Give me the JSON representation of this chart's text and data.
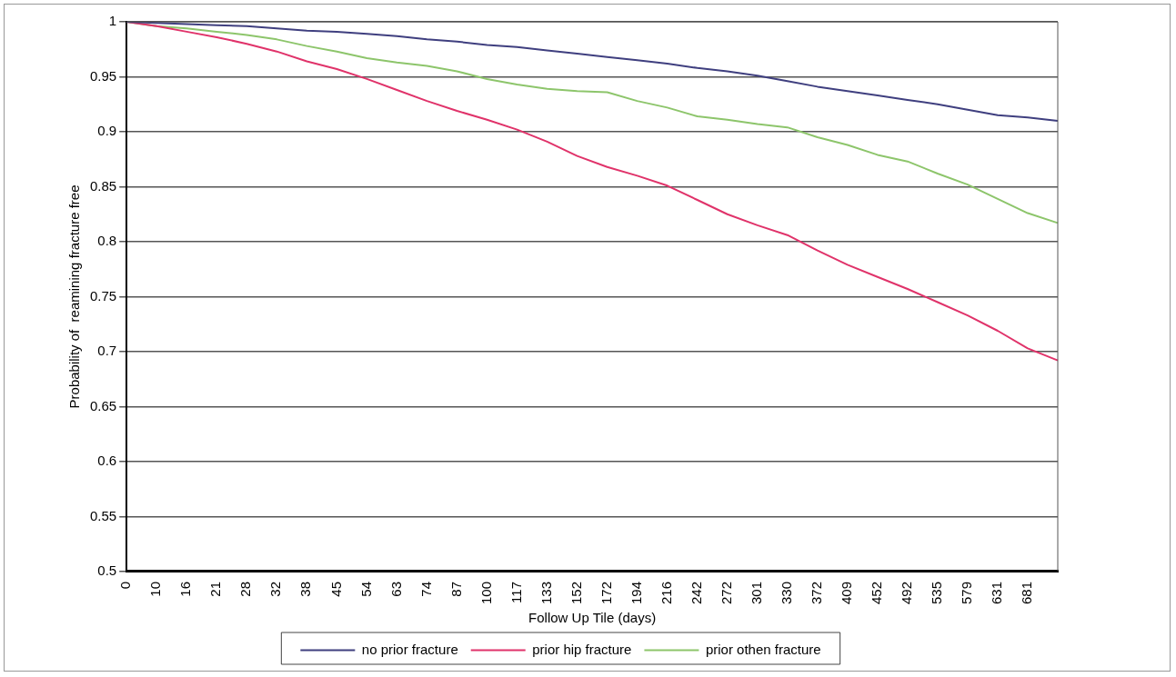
{
  "chart_data": {
    "type": "line",
    "xlabel": "Follow Up Tile (days)",
    "ylabel": "Probability of  reamining fracture free",
    "categories": [
      "0",
      "10",
      "16",
      "21",
      "28",
      "32",
      "38",
      "45",
      "54",
      "63",
      "74",
      "87",
      "100",
      "117",
      "133",
      "152",
      "172",
      "194",
      "216",
      "242",
      "272",
      "301",
      "330",
      "372",
      "409",
      "452",
      "492",
      "535",
      "579",
      "631",
      "681",
      null
    ],
    "series": [
      {
        "name": "no prior fracture",
        "color": "#3f3f7f",
        "values": [
          1.0,
          0.999,
          0.998,
          0.997,
          0.996,
          0.994,
          0.992,
          0.991,
          0.989,
          0.987,
          0.984,
          0.982,
          0.979,
          0.977,
          0.974,
          0.971,
          0.968,
          0.965,
          0.962,
          0.958,
          0.955,
          0.951,
          0.946,
          0.941,
          0.937,
          0.933,
          0.929,
          0.925,
          0.92,
          0.915,
          0.913,
          0.91
        ]
      },
      {
        "name": "prior hip fracture",
        "color": "#e0336a",
        "values": [
          1.0,
          0.996,
          0.991,
          0.986,
          0.98,
          0.973,
          0.964,
          0.957,
          0.948,
          0.938,
          0.928,
          0.919,
          0.911,
          0.902,
          0.891,
          0.878,
          0.868,
          0.86,
          0.851,
          0.838,
          0.825,
          0.815,
          0.806,
          0.792,
          0.779,
          0.768,
          0.757,
          0.745,
          0.733,
          0.719,
          0.703,
          0.692
        ]
      },
      {
        "name": "prior othen fracture",
        "color": "#8dc56b",
        "values": [
          1.0,
          0.996,
          0.994,
          0.991,
          0.988,
          0.984,
          0.978,
          0.973,
          0.967,
          0.963,
          0.96,
          0.955,
          0.948,
          0.943,
          0.939,
          0.937,
          0.936,
          0.928,
          0.922,
          0.914,
          0.911,
          0.907,
          0.904,
          0.895,
          0.888,
          0.879,
          0.873,
          0.862,
          0.852,
          0.839,
          0.826,
          0.817
        ]
      }
    ],
    "ylim": [
      0.5,
      1
    ],
    "yticks": [
      0.5,
      0.55,
      0.6,
      0.65,
      0.7,
      0.75,
      0.8,
      0.85,
      0.9,
      0.95,
      1
    ],
    "grid": "y",
    "legend": "bottom",
    "marker": "none",
    "line_style": "solid"
  }
}
